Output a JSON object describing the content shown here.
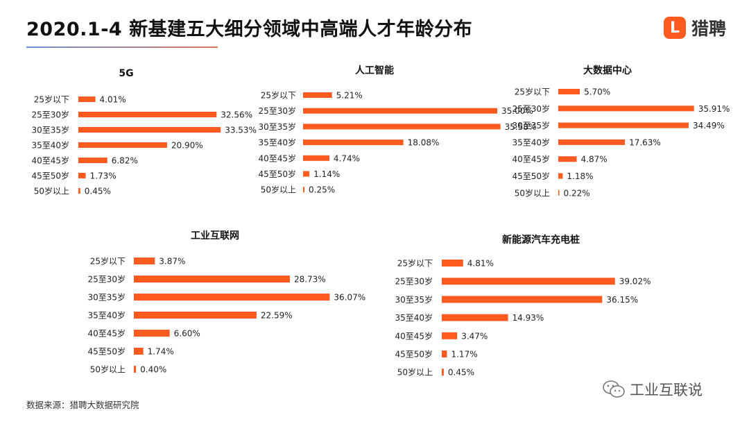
{
  "title": "2020.1-4 新基建五大细分领域中高端人才年龄分布",
  "logo": {
    "mark": "L",
    "text": "猎聘"
  },
  "source": "数据来源：猎聘大数据研究院",
  "watermark": {
    "text": "工业互联说",
    "icon": "wechat-icon"
  },
  "colors": {
    "bar": "#FF5A1F",
    "title": "#111111"
  },
  "chart_data": [
    {
      "type": "bar",
      "orientation": "horizontal",
      "title": "5G",
      "categories": [
        "25岁以下",
        "25至30岁",
        "30至35岁",
        "35至40岁",
        "40至45岁",
        "45至50岁",
        "50岁以上"
      ],
      "values": [
        4.01,
        32.56,
        33.53,
        20.9,
        6.82,
        1.73,
        0.45
      ],
      "labels": [
        "4.01%",
        "32.56%",
        "33.53%",
        "20.90%",
        "6.82%",
        "1.73%",
        "0.45%"
      ]
    },
    {
      "type": "bar",
      "orientation": "horizontal",
      "title": "人工智能",
      "categories": [
        "25岁以下",
        "25至30岁",
        "30至35岁",
        "35至40岁",
        "40至45岁",
        "45至50岁",
        "50岁以上"
      ],
      "values": [
        5.21,
        35.0,
        35.58,
        18.08,
        4.74,
        1.14,
        0.25
      ],
      "labels": [
        "5.21%",
        "35.00%",
        "35.58%",
        "18.08%",
        "4.74%",
        "1.14%",
        "0.25%"
      ]
    },
    {
      "type": "bar",
      "orientation": "horizontal",
      "title": "大数据中心",
      "categories": [
        "25岁以下",
        "25至30岁",
        "30至35岁",
        "35至40岁",
        "40至45岁",
        "45至50岁",
        "50岁以上"
      ],
      "values": [
        5.7,
        35.91,
        34.49,
        17.63,
        4.87,
        1.18,
        0.22
      ],
      "labels": [
        "5.70%",
        "35.91%",
        "34.49%",
        "17.63%",
        "4.87%",
        "1.18%",
        "0.22%"
      ]
    },
    {
      "type": "bar",
      "orientation": "horizontal",
      "title": "工业互联网",
      "categories": [
        "25岁以下",
        "25至30岁",
        "30至35岁",
        "35至40岁",
        "40至45岁",
        "45至50岁",
        "50岁以上"
      ],
      "values": [
        3.87,
        28.73,
        36.07,
        22.59,
        6.6,
        1.74,
        0.4
      ],
      "labels": [
        "3.87%",
        "28.73%",
        "36.07%",
        "22.59%",
        "6.60%",
        "1.74%",
        "0.40%"
      ]
    },
    {
      "type": "bar",
      "orientation": "horizontal",
      "title": "新能源汽车充电桩",
      "categories": [
        "25岁以下",
        "25至30岁",
        "30至35岁",
        "35至40岁",
        "40至45岁",
        "45至50岁",
        "50岁以上"
      ],
      "values": [
        4.81,
        39.02,
        36.15,
        14.93,
        3.47,
        1.17,
        0.45
      ],
      "labels": [
        "4.81%",
        "39.02%",
        "36.15%",
        "14.93%",
        "3.47%",
        "1.17%",
        "0.45%"
      ]
    }
  ]
}
